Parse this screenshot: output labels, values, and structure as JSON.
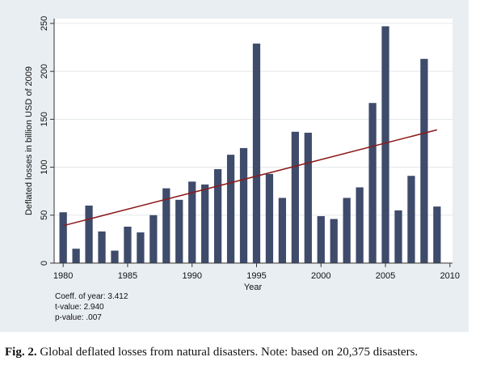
{
  "chart_data": {
    "type": "bar",
    "categories": [
      1980,
      1981,
      1982,
      1983,
      1984,
      1985,
      1986,
      1987,
      1988,
      1989,
      1990,
      1991,
      1992,
      1993,
      1994,
      1995,
      1996,
      1997,
      1998,
      1999,
      2000,
      2001,
      2002,
      2003,
      2004,
      2005,
      2006,
      2007,
      2008,
      2009
    ],
    "values": [
      53,
      15,
      60,
      33,
      13,
      38,
      32,
      50,
      78,
      66,
      85,
      82,
      98,
      113,
      120,
      229,
      93,
      68,
      137,
      136,
      49,
      46,
      68,
      79,
      167,
      247,
      55,
      91,
      213,
      59
    ],
    "trend": {
      "type": "linear",
      "x": [
        1980,
        2009
      ],
      "y": [
        39,
        139
      ]
    },
    "xlabel": "Year",
    "ylabel": "Deflated losses in billion USD of 2009",
    "x_ticks": [
      1980,
      1985,
      1990,
      1995,
      2000,
      2005,
      2010
    ],
    "y_ticks": [
      0,
      50,
      100,
      150,
      200,
      250
    ],
    "ylim": [
      0,
      255
    ],
    "xlim": [
      1979.3,
      2010.2
    ],
    "grid": "horizontal",
    "colors": {
      "bar": "#3f4b6b",
      "trend": "#8b1a1a",
      "panel": "#e9eef2",
      "plot_bg": "#ffffff"
    }
  },
  "notes": {
    "coeff": "Coeff. of year: 3.412",
    "tvalue": "t-value: 2.940",
    "pvalue": "p-value: .007"
  },
  "caption": {
    "label": "Fig. 2.",
    "text": " Global deflated losses from natural disasters. Note: based on 20,375 disasters."
  }
}
